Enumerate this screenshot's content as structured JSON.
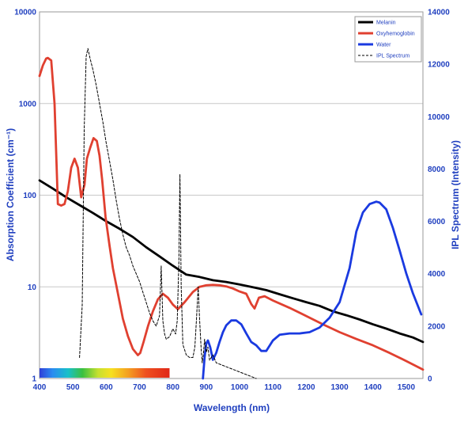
{
  "chart_data": {
    "type": "line",
    "xlabel": "Wavelength (nm)",
    "ylabel_left": "Absorption Coefficient (cm⁻¹)",
    "ylabel_right": "IPL Spectrum (Intensity)",
    "xlim": [
      400,
      1550
    ],
    "ylim_left": [
      1,
      10000
    ],
    "y_left_scale": "log",
    "ylim_right": [
      0,
      14000
    ],
    "grid": "horizontal",
    "legend_position": "top-right",
    "x_ticks": [
      "400",
      "500",
      "600",
      "700",
      "800",
      "900",
      "1000",
      "1100",
      "1200",
      "1300",
      "1400",
      "1500"
    ],
    "y_left_ticks": [
      "1",
      "10",
      "100",
      "1000",
      "10000"
    ],
    "y_right_ticks": [
      "0",
      "2000",
      "4000",
      "6000",
      "8000",
      "10000",
      "12000",
      "14000"
    ],
    "visible_spectrum_bar": {
      "from_nm": 400,
      "to_nm": 790
    },
    "series": [
      {
        "name": "Melanin",
        "axis": "left",
        "color": "#000000",
        "dash": "none",
        "x": [
          400,
          440,
          480,
          520,
          560,
          600,
          640,
          680,
          720,
          760,
          800,
          840,
          880,
          920,
          960,
          1000,
          1040,
          1080,
          1120,
          1160,
          1200,
          1240,
          1280,
          1320,
          1360,
          1400,
          1440,
          1480,
          1520,
          1550
        ],
        "y": [
          145,
          118,
          95,
          78,
          64,
          52,
          43,
          35,
          27,
          21.5,
          17,
          13.6,
          12.8,
          11.8,
          11.3,
          10.6,
          9.9,
          9.2,
          8.3,
          7.5,
          6.8,
          6.2,
          5.4,
          4.9,
          4.4,
          3.9,
          3.5,
          3.1,
          2.8,
          2.5
        ]
      },
      {
        "name": "Oxyhemoglobin",
        "axis": "left",
        "color": "#e04030",
        "dash": "none",
        "x": [
          400,
          410,
          420,
          425,
          435,
          445,
          455,
          465,
          475,
          485,
          495,
          505,
          515,
          525,
          535,
          542,
          552,
          562,
          572,
          580,
          588,
          598,
          610,
          620,
          635,
          650,
          665,
          680,
          695,
          702,
          712,
          725,
          740,
          755,
          770,
          785,
          800,
          815,
          835,
          860,
          880,
          900,
          920,
          940,
          960,
          980,
          1000,
          1020,
          1035,
          1045,
          1058,
          1075,
          1100,
          1150,
          1200,
          1250,
          1300,
          1350,
          1400,
          1450,
          1500,
          1550
        ],
        "y": [
          2000,
          2600,
          3100,
          3150,
          2950,
          1000,
          80,
          77,
          80,
          110,
          200,
          250,
          200,
          95,
          130,
          250,
          330,
          420,
          390,
          270,
          145,
          58,
          28,
          16,
          8.5,
          4.5,
          2.9,
          2.1,
          1.8,
          1.9,
          2.5,
          3.7,
          5.4,
          7.3,
          8.4,
          7.6,
          6.4,
          5.7,
          6.8,
          8.8,
          10,
          10.4,
          10.5,
          10.4,
          10.1,
          9.6,
          8.9,
          8.4,
          6.5,
          5.8,
          7.6,
          7.9,
          7.1,
          5.9,
          4.8,
          3.9,
          3.2,
          2.7,
          2.3,
          1.9,
          1.55,
          1.25
        ]
      },
      {
        "name": "Water",
        "axis": "left",
        "color": "#1a3ae0",
        "dash": "none",
        "x": [
          890,
          895,
          900,
          905,
          912,
          920,
          930,
          940,
          950,
          960,
          975,
          990,
          1005,
          1020,
          1035,
          1050,
          1065,
          1080,
          1100,
          1120,
          1150,
          1180,
          1210,
          1240,
          1270,
          1300,
          1330,
          1350,
          1370,
          1390,
          1410,
          1420,
          1440,
          1460,
          1480,
          1500,
          1520,
          1545
        ],
        "y": [
          1.0,
          1.7,
          2.4,
          2.6,
          2.2,
          1.6,
          1.9,
          2.5,
          3.2,
          3.8,
          4.3,
          4.3,
          3.9,
          3.1,
          2.5,
          2.3,
          2.0,
          2.0,
          2.6,
          3.0,
          3.1,
          3.1,
          3.2,
          3.6,
          4.6,
          6.8,
          16,
          40,
          65,
          80,
          85,
          83,
          70,
          44,
          25,
          14,
          8.5,
          5.0
        ]
      },
      {
        "name": "IPL Spectrum",
        "axis": "right",
        "color": "#000000",
        "dash": "3,2",
        "x": [
          520,
          528,
          534,
          540,
          545,
          552,
          560,
          570,
          580,
          590,
          600,
          610,
          620,
          630,
          640,
          650,
          660,
          670,
          680,
          690,
          700,
          710,
          720,
          730,
          740,
          750,
          760,
          765,
          770,
          775,
          780,
          790,
          800,
          808,
          813,
          818,
          821,
          825,
          830,
          840,
          850,
          860,
          866,
          871,
          876,
          880,
          885,
          888,
          892,
          895,
          900,
          905,
          910,
          920,
          930,
          950,
          970,
          990,
          1010,
          1030,
          1050
        ],
        "y": [
          800,
          2800,
          9500,
          12300,
          12600,
          12200,
          11800,
          11200,
          10500,
          9800,
          9000,
          8300,
          7600,
          6800,
          6100,
          5500,
          5000,
          4700,
          4300,
          4000,
          3700,
          3300,
          2900,
          2500,
          2200,
          2000,
          2400,
          4300,
          2200,
          1700,
          1500,
          1600,
          1900,
          1700,
          2200,
          4500,
          7800,
          3500,
          1300,
          900,
          800,
          800,
          1200,
          2300,
          3500,
          2300,
          1100,
          600,
          1000,
          1500,
          1000,
          1200,
          700,
          900,
          600,
          500,
          400,
          300,
          200,
          100,
          0
        ]
      }
    ]
  }
}
